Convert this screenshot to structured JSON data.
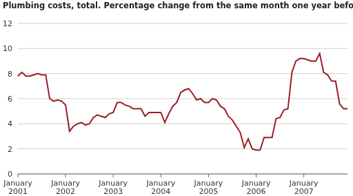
{
  "chart_data": {
    "type": "line",
    "title": "Plumbing costs, total. Percentage change from the same month one year before",
    "categories": [
      "January 2001",
      null,
      null,
      null,
      null,
      null,
      null,
      null,
      null,
      null,
      null,
      null,
      "January 2002",
      null,
      null,
      null,
      null,
      null,
      null,
      null,
      null,
      null,
      null,
      null,
      "January 2003",
      null,
      null,
      null,
      null,
      null,
      null,
      null,
      null,
      null,
      null,
      null,
      "January 2004",
      null,
      null,
      null,
      null,
      null,
      null,
      null,
      null,
      null,
      null,
      null,
      "January 2005",
      null,
      null,
      null,
      null,
      null,
      null,
      null,
      null,
      null,
      null,
      null,
      "January 2006",
      null,
      null,
      null,
      null,
      null,
      null,
      null,
      null,
      null,
      null,
      null,
      "January 2007",
      null,
      null,
      null,
      null,
      null,
      null,
      null,
      null,
      null,
      null,
      null
    ],
    "values": [
      7.8,
      8.1,
      7.8,
      7.8,
      7.9,
      8.0,
      7.9,
      7.9,
      6.0,
      5.8,
      5.9,
      5.8,
      5.5,
      3.4,
      3.8,
      4.0,
      4.1,
      3.9,
      4.0,
      4.5,
      4.7,
      4.6,
      4.5,
      4.8,
      4.9,
      5.7,
      5.7,
      5.5,
      5.4,
      5.2,
      5.2,
      5.2,
      4.6,
      4.9,
      4.9,
      4.9,
      4.9,
      4.1,
      4.8,
      5.4,
      5.7,
      6.5,
      6.7,
      6.8,
      6.4,
      5.9,
      6.0,
      5.7,
      5.7,
      6.0,
      5.9,
      5.4,
      5.2,
      4.6,
      4.3,
      3.8,
      3.3,
      2.1,
      2.8,
      2.0,
      1.9,
      1.9,
      2.9,
      2.9,
      2.9,
      4.4,
      4.5,
      5.1,
      5.2,
      8.1,
      9.0,
      9.2,
      9.2,
      9.1,
      9.0,
      9.0,
      9.6,
      8.1,
      7.9,
      7.4,
      7.4,
      5.6,
      5.2,
      5.2
    ],
    "color": "#9b1c24",
    "ylim": [
      0,
      12
    ],
    "yticks": [
      0,
      2,
      4,
      6,
      8,
      10,
      12
    ],
    "grid": true
  }
}
